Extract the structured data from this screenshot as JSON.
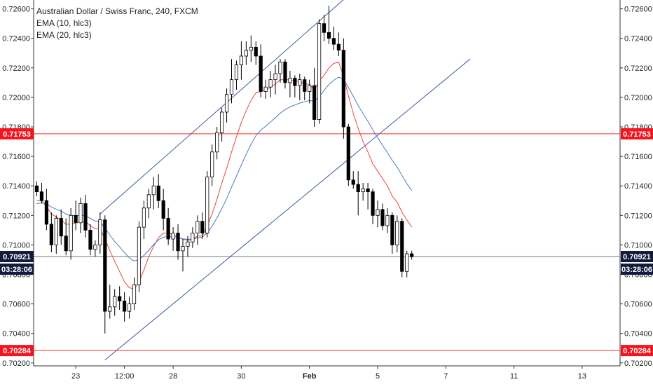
{
  "legend": {
    "title": "Australian Dollar / Swiss Franc, 240, FXCM",
    "ema1": "EMA (10, hlc3)",
    "ema2": "EMA (20, hlc3)"
  },
  "colors": {
    "up_body": "#ffffff",
    "down_body": "#000000",
    "wick": "#000000",
    "ema10": "#e8453c",
    "ema20": "#4a7bbd",
    "trendline": "#3a5a9a",
    "level_line": "#ff2a2a",
    "price_line": "#4a4a4a",
    "level_label_bg": "#f5141e",
    "price_label_bg": "#131a3d"
  },
  "chart_data": {
    "type": "candlestick",
    "title": "Australian Dollar / Swiss Franc, 240, FXCM",
    "ylim": [
      0.7018,
      0.7266
    ],
    "y_ticks": [
      "0.70200",
      "0.70400",
      "0.70600",
      "0.70800",
      "0.71000",
      "0.71200",
      "0.71400",
      "0.71600",
      "0.71800",
      "0.72000",
      "0.72200",
      "0.72400",
      "0.72600"
    ],
    "x_tick_labels": [
      {
        "label": "23",
        "bar": 8
      },
      {
        "label": "12:00",
        "bar": 18
      },
      {
        "label": "28",
        "bar": 28
      },
      {
        "label": "30",
        "bar": 42
      },
      {
        "label": "Feb",
        "bar": 56
      },
      {
        "label": "5",
        "bar": 70
      },
      {
        "label": "7",
        "bar": 84
      },
      {
        "label": "11",
        "bar": 98
      },
      {
        "label": "13",
        "bar": 112
      }
    ],
    "levels": [
      {
        "name": "resistance-level",
        "value": 0.71753,
        "label": "0.71753"
      },
      {
        "name": "support-level",
        "value": 0.70284,
        "label": "0.70284"
      }
    ],
    "current_price": {
      "value": 0.70921,
      "label": "0.70921",
      "countdown": "03:28:06"
    },
    "channel_lines": [
      {
        "x1": 13,
        "y1": 0.7121,
        "x2": 66,
        "y2": 0.7275
      },
      {
        "x1": 14,
        "y1": 0.7022,
        "x2": 89,
        "y2": 0.7226
      }
    ],
    "candles": [
      [
        0.714,
        0.7143,
        0.7133,
        0.7136
      ],
      [
        0.7136,
        0.7142,
        0.7128,
        0.713
      ],
      [
        0.713,
        0.7138,
        0.711,
        0.7114
      ],
      [
        0.7114,
        0.7122,
        0.7095,
        0.71
      ],
      [
        0.71,
        0.712,
        0.7094,
        0.7118
      ],
      [
        0.7118,
        0.7124,
        0.71,
        0.7106
      ],
      [
        0.7106,
        0.7118,
        0.7093,
        0.7096
      ],
      [
        0.7096,
        0.7125,
        0.709,
        0.712
      ],
      [
        0.712,
        0.713,
        0.711,
        0.7115
      ],
      [
        0.7115,
        0.7132,
        0.7108,
        0.7128
      ],
      [
        0.7128,
        0.7134,
        0.7105,
        0.711
      ],
      [
        0.711,
        0.7114,
        0.7093,
        0.7097
      ],
      [
        0.7097,
        0.7103,
        0.7092,
        0.71
      ],
      [
        0.71,
        0.7122,
        0.7094,
        0.7117
      ],
      [
        0.7117,
        0.712,
        0.704,
        0.7055
      ],
      [
        0.7055,
        0.7073,
        0.705,
        0.7058
      ],
      [
        0.7058,
        0.707,
        0.7052,
        0.7065
      ],
      [
        0.7065,
        0.7072,
        0.7056,
        0.7062
      ],
      [
        0.7062,
        0.7068,
        0.7048,
        0.7055
      ],
      [
        0.7055,
        0.7065,
        0.705,
        0.706
      ],
      [
        0.706,
        0.7078,
        0.7056,
        0.7073
      ],
      [
        0.7073,
        0.7116,
        0.7068,
        0.7112
      ],
      [
        0.7112,
        0.713,
        0.7104,
        0.7125
      ],
      [
        0.7125,
        0.7138,
        0.7118,
        0.7134
      ],
      [
        0.7134,
        0.7146,
        0.7124,
        0.714
      ],
      [
        0.714,
        0.7148,
        0.7125,
        0.713
      ],
      [
        0.713,
        0.7138,
        0.711,
        0.7118
      ],
      [
        0.7118,
        0.7125,
        0.71,
        0.7104
      ],
      [
        0.7104,
        0.7112,
        0.7096,
        0.7108
      ],
      [
        0.7108,
        0.7114,
        0.709,
        0.7096
      ],
      [
        0.7096,
        0.7104,
        0.7082,
        0.7099
      ],
      [
        0.7099,
        0.7106,
        0.7092,
        0.7102
      ],
      [
        0.7102,
        0.7112,
        0.7098,
        0.7108
      ],
      [
        0.7108,
        0.712,
        0.71,
        0.7116
      ],
      [
        0.7116,
        0.7122,
        0.7104,
        0.7108
      ],
      [
        0.7108,
        0.715,
        0.7105,
        0.7146
      ],
      [
        0.7146,
        0.7168,
        0.714,
        0.7163
      ],
      [
        0.7163,
        0.718,
        0.7158,
        0.7176
      ],
      [
        0.7176,
        0.7193,
        0.717,
        0.719
      ],
      [
        0.719,
        0.7206,
        0.7183,
        0.7202
      ],
      [
        0.7202,
        0.7226,
        0.7196,
        0.7212
      ],
      [
        0.7212,
        0.7225,
        0.7205,
        0.7222
      ],
      [
        0.7222,
        0.7238,
        0.7212,
        0.7228
      ],
      [
        0.7228,
        0.7238,
        0.7222,
        0.7232
      ],
      [
        0.7232,
        0.7242,
        0.7224,
        0.7234
      ],
      [
        0.7234,
        0.7238,
        0.7222,
        0.7228
      ],
      [
        0.7228,
        0.7236,
        0.72,
        0.7204
      ],
      [
        0.7204,
        0.7212,
        0.7199,
        0.7207
      ],
      [
        0.7207,
        0.7218,
        0.72,
        0.7212
      ],
      [
        0.7212,
        0.7222,
        0.7202,
        0.7216
      ],
      [
        0.7216,
        0.7226,
        0.721,
        0.7224
      ],
      [
        0.7224,
        0.7226,
        0.7206,
        0.721
      ],
      [
        0.721,
        0.7218,
        0.72,
        0.7213
      ],
      [
        0.7213,
        0.7215,
        0.72,
        0.7208
      ],
      [
        0.7208,
        0.7216,
        0.7198,
        0.7212
      ],
      [
        0.7212,
        0.7214,
        0.7198,
        0.7204
      ],
      [
        0.7204,
        0.7212,
        0.7196,
        0.7208
      ],
      [
        0.7208,
        0.722,
        0.718,
        0.7185
      ],
      [
        0.7185,
        0.7253,
        0.7182,
        0.725
      ],
      [
        0.725,
        0.7256,
        0.7238,
        0.7244
      ],
      [
        0.7244,
        0.7262,
        0.7236,
        0.724
      ],
      [
        0.724,
        0.7248,
        0.7232,
        0.7236
      ],
      [
        0.7236,
        0.7244,
        0.7228,
        0.7232
      ],
      [
        0.7232,
        0.724,
        0.7172,
        0.718
      ],
      [
        0.718,
        0.7182,
        0.714,
        0.7144
      ],
      [
        0.7144,
        0.715,
        0.7138,
        0.7141
      ],
      [
        0.7141,
        0.715,
        0.712,
        0.7136
      ],
      [
        0.7136,
        0.7142,
        0.713,
        0.7138
      ],
      [
        0.7138,
        0.7142,
        0.7124,
        0.7136
      ],
      [
        0.7136,
        0.7138,
        0.7114,
        0.712
      ],
      [
        0.712,
        0.713,
        0.7112,
        0.7124
      ],
      [
        0.7124,
        0.7128,
        0.711,
        0.7113
      ],
      [
        0.7113,
        0.7125,
        0.7108,
        0.712
      ],
      [
        0.712,
        0.7122,
        0.7094,
        0.71
      ],
      [
        0.71,
        0.712,
        0.7095,
        0.7116
      ],
      [
        0.7116,
        0.7118,
        0.7078,
        0.7082
      ],
      [
        0.7082,
        0.7096,
        0.7078,
        0.7094
      ],
      [
        0.7094,
        0.7096,
        0.709,
        0.7092
      ]
    ],
    "ema10": [
      0.713,
      0.713,
      0.7126,
      0.7121,
      0.7119,
      0.7117,
      0.7114,
      0.7114,
      0.7115,
      0.7116,
      0.7116,
      0.7113,
      0.7111,
      0.7111,
      0.7104,
      0.7096,
      0.7089,
      0.7082,
      0.7075,
      0.7071,
      0.707,
      0.7075,
      0.7083,
      0.7092,
      0.7099,
      0.7105,
      0.7108,
      0.7108,
      0.7107,
      0.7105,
      0.7104,
      0.7103,
      0.7104,
      0.7106,
      0.7106,
      0.7113,
      0.7121,
      0.7131,
      0.7142,
      0.7152,
      0.7163,
      0.7173,
      0.7183,
      0.7191,
      0.7198,
      0.7203,
      0.7204,
      0.7205,
      0.7207,
      0.7209,
      0.7212,
      0.7212,
      0.7212,
      0.7211,
      0.7211,
      0.7209,
      0.7209,
      0.7205,
      0.7211,
      0.7215,
      0.722,
      0.7223,
      0.7224,
      0.7214,
      0.7201,
      0.7189,
      0.7179,
      0.717,
      0.7163,
      0.7155,
      0.715,
      0.7145,
      0.714,
      0.7133,
      0.7129,
      0.7122,
      0.7117,
      0.7112
    ]
  }
}
